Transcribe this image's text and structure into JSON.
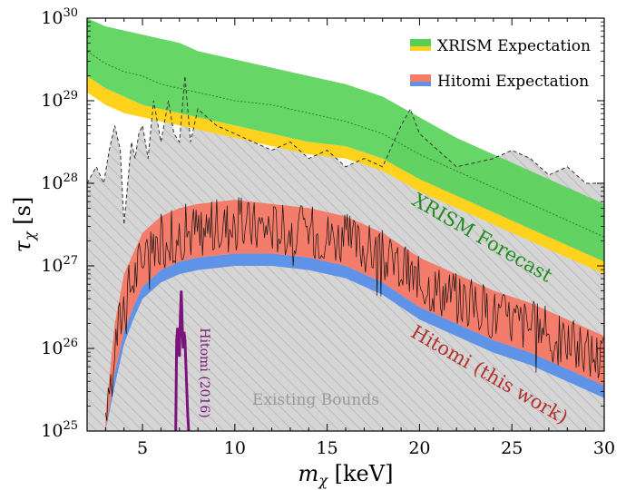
{
  "chart_data": {
    "type": "area",
    "xlabel_symbol": "m",
    "xlabel_sub": "χ",
    "xlabel_unit": " [keV]",
    "ylabel_symbol": "τ",
    "ylabel_sub": "χ",
    "ylabel_unit": " [s]",
    "xlim": [
      2,
      30
    ],
    "ylim_log10": [
      25,
      30
    ],
    "y_scale": "log",
    "x_ticks": [
      5,
      10,
      15,
      20,
      25,
      30
    ],
    "y_tick_exponents": [
      25,
      26,
      27,
      28,
      29,
      30
    ],
    "y_tick_base": "10",
    "legend_position": "top-right",
    "legend": [
      {
        "label": "XRISM Expectation",
        "color_top": "#55d155",
        "color_bottom": "#ffd21e"
      },
      {
        "label": "Hitomi Expectation",
        "color_top": "#f47c6a",
        "color_bottom": "#5f93e8"
      }
    ],
    "annotations": {
      "xrism_forecast": "XRISM Forecast",
      "hitomi_this_work": "Hitomi (this work)",
      "hitomi_2016": "Hitomi (2016)",
      "existing_bounds": "Existing Bounds"
    },
    "colors": {
      "existing_fill": "#d5d5d5",
      "existing_hatch": "#b8b8b8",
      "xrism_green": "#55d155",
      "xrism_yellow": "#ffd21e",
      "hitomi_red": "#f47c6a",
      "hitomi_blue": "#5f93e8",
      "xrism_label": "#1f8c1f",
      "hitomi_label": "#b3312c",
      "hitomi2016": "#7a137a",
      "existing_label": "#9a9a9a"
    },
    "series": [
      {
        "name": "Existing Bounds",
        "x": [
          2.0,
          2.5,
          2.9,
          3.2,
          3.5,
          3.8,
          4.0,
          4.2,
          4.4,
          4.6,
          4.8,
          5.0,
          5.3,
          5.6,
          6.0,
          6.4,
          6.7,
          7.0,
          7.3,
          7.6,
          8.0,
          8.5,
          9.0,
          10.0,
          11.0,
          12.0,
          13.0,
          14.0,
          15.0,
          16.0,
          17.0,
          18.0,
          19.0,
          19.5,
          20.0,
          21.0,
          22.0,
          23.0,
          24.0,
          25.0,
          26.0,
          27.0,
          28.0,
          29.0,
          30.0
        ],
        "log10_tau": [
          28.0,
          28.2,
          28.0,
          28.4,
          28.7,
          28.4,
          27.5,
          28.0,
          28.5,
          28.3,
          28.6,
          28.7,
          28.3,
          29.0,
          28.5,
          29.0,
          28.6,
          28.5,
          29.3,
          28.5,
          28.9,
          28.8,
          28.7,
          28.6,
          28.5,
          28.4,
          28.5,
          28.3,
          28.4,
          28.2,
          28.3,
          28.2,
          28.7,
          28.9,
          28.6,
          28.4,
          28.2,
          28.25,
          28.3,
          28.4,
          28.3,
          28.1,
          28.2,
          28.0,
          28.0
        ]
      },
      {
        "name": "XRISM Expectation",
        "x": [
          2.0,
          3.0,
          4.0,
          5.0,
          6.0,
          7.0,
          8.0,
          10.0,
          12.0,
          14.0,
          16.0,
          18.0,
          20.0,
          22.0,
          24.0,
          26.0,
          28.0,
          30.0
        ],
        "log10_tau_median": [
          29.6,
          29.45,
          29.35,
          29.3,
          29.2,
          29.15,
          29.1,
          29.0,
          28.95,
          28.85,
          28.75,
          28.6,
          28.35,
          28.15,
          27.95,
          27.75,
          27.55,
          27.35
        ],
        "log10_tau_upper": [
          30.0,
          29.9,
          29.85,
          29.8,
          29.75,
          29.7,
          29.6,
          29.5,
          29.4,
          29.3,
          29.2,
          29.05,
          28.8,
          28.55,
          28.35,
          28.15,
          27.95,
          27.75
        ],
        "log10_tau_lower": [
          29.3,
          29.15,
          29.05,
          28.95,
          28.9,
          28.85,
          28.8,
          28.7,
          28.6,
          28.5,
          28.45,
          28.3,
          28.05,
          27.85,
          27.65,
          27.45,
          27.25,
          27.05
        ],
        "log10_tau_lower2": [
          29.1,
          28.95,
          28.85,
          28.8,
          28.75,
          28.7,
          28.65,
          28.55,
          28.45,
          28.35,
          28.3,
          28.15,
          27.9,
          27.7,
          27.5,
          27.3,
          27.1,
          26.9
        ]
      },
      {
        "name": "Hitomi (this work)",
        "x": [
          3.0,
          3.5,
          4.0,
          4.5,
          5.0,
          6.0,
          7.0,
          8.0,
          10.0,
          12.0,
          14.0,
          16.0,
          18.0,
          20.0,
          22.0,
          24.0,
          26.0,
          28.0,
          30.0
        ],
        "log10_tau_median": [
          25.0,
          26.0,
          26.5,
          26.8,
          27.0,
          27.25,
          27.35,
          27.4,
          27.45,
          27.45,
          27.4,
          27.3,
          27.1,
          26.8,
          26.6,
          26.4,
          26.25,
          26.05,
          25.85
        ],
        "log10_tau_upper": [
          25.2,
          26.3,
          26.9,
          27.15,
          27.4,
          27.6,
          27.7,
          27.75,
          27.8,
          27.75,
          27.7,
          27.6,
          27.4,
          27.1,
          26.9,
          26.7,
          26.55,
          26.35,
          26.15
        ],
        "log10_tau_lower": [
          25.0,
          25.7,
          26.2,
          26.5,
          26.75,
          26.95,
          27.05,
          27.1,
          27.15,
          27.15,
          27.1,
          27.0,
          26.8,
          26.5,
          26.3,
          26.1,
          25.95,
          25.75,
          25.55
        ],
        "log10_tau_lower2": [
          25.0,
          25.55,
          26.05,
          26.35,
          26.6,
          26.8,
          26.9,
          26.95,
          27.0,
          27.0,
          26.95,
          26.85,
          26.65,
          26.35,
          26.15,
          25.95,
          25.8,
          25.6,
          25.4
        ]
      },
      {
        "name": "Hitomi (2016)",
        "x": [
          6.8,
          6.85,
          6.9,
          6.95,
          7.0,
          7.05,
          7.1,
          7.15,
          7.2,
          7.25,
          7.3,
          7.35,
          7.4,
          7.45,
          7.5
        ],
        "log10_tau": [
          25.0,
          26.1,
          26.25,
          26.0,
          25.9,
          26.4,
          26.7,
          26.3,
          26.0,
          26.2,
          26.1,
          25.8,
          25.5,
          25.2,
          25.0
        ]
      }
    ]
  }
}
